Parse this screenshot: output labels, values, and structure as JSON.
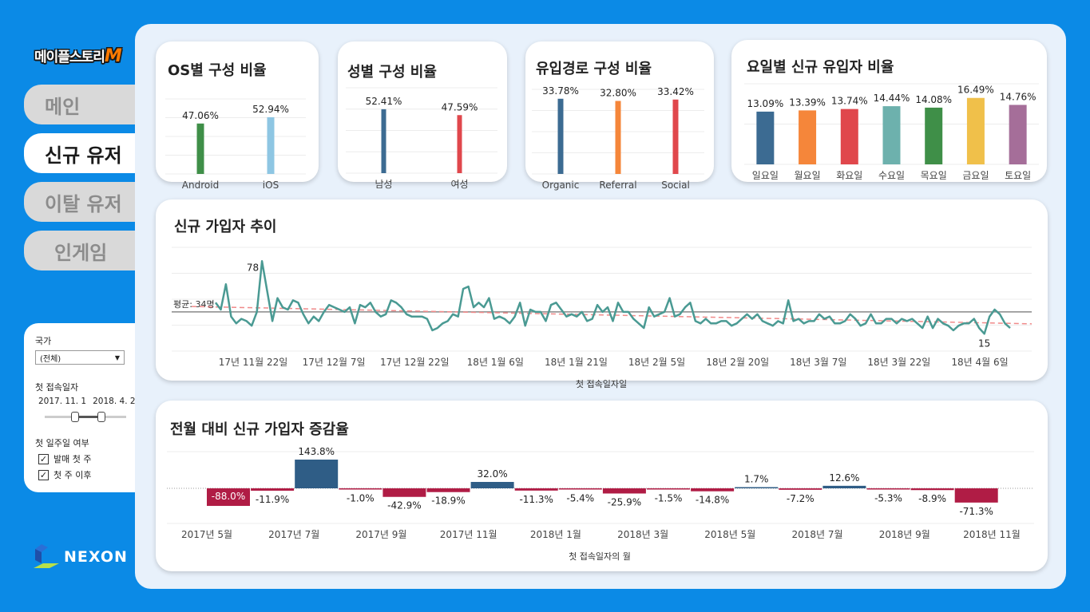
{
  "sidebar": {
    "logo": "메이플스토리",
    "logo_m": "M",
    "nav": [
      "메인",
      "신규 유저",
      "이탈 유저",
      "인게임"
    ],
    "active_index": 1,
    "filters": {
      "country_label": "국가",
      "country_value": "(전체)",
      "first_date_label": "첫 접속일자",
      "date_start": "2017. 11. 1",
      "date_end": "2018. 4. 2.",
      "first_week_label": "첫 일주일 여부",
      "checkbox_1": "발매 첫 주",
      "checkbox_2": "첫 주 이후"
    },
    "brand": "NEXON"
  },
  "os_card": {
    "title": "OS별 구성 비율",
    "chart_data": {
      "type": "bar",
      "categories": [
        "Android",
        "iOS"
      ],
      "values": [
        47.06,
        52.94
      ],
      "labels": [
        "47.06%",
        "52.94%"
      ],
      "colors": [
        "#3f8f48",
        "#8ec6e3"
      ]
    }
  },
  "gender_card": {
    "title": "성별 구성 비율",
    "chart_data": {
      "type": "bar",
      "categories": [
        "남성",
        "여성"
      ],
      "values": [
        52.41,
        47.59
      ],
      "labels": [
        "52.41%",
        "47.59%"
      ],
      "colors": [
        "#3c6b92",
        "#e0474c"
      ]
    }
  },
  "channel_card": {
    "title": "유입경로 구성 비율",
    "chart_data": {
      "type": "bar",
      "categories": [
        "Organic",
        "Referral",
        "Social"
      ],
      "values": [
        33.78,
        32.8,
        33.42
      ],
      "labels": [
        "33.78%",
        "32.80%",
        "33.42%"
      ],
      "colors": [
        "#3c6b92",
        "#f5863a",
        "#e0474c"
      ]
    }
  },
  "weekday_card": {
    "title": "요일별 신규 유입자 비율",
    "chart_data": {
      "type": "bar",
      "categories": [
        "일요일",
        "월요일",
        "화요일",
        "수요일",
        "목요일",
        "금요일",
        "토요일"
      ],
      "values": [
        13.09,
        13.39,
        13.74,
        14.44,
        14.08,
        16.49,
        14.76
      ],
      "labels": [
        "13.09%",
        "13.39%",
        "13.74%",
        "14.44%",
        "14.08%",
        "16.49%",
        "14.76%"
      ],
      "colors": [
        "#3c6b92",
        "#f5863a",
        "#e0474c",
        "#6db1ad",
        "#3f8f48",
        "#f0c04a",
        "#a56e99"
      ]
    }
  },
  "trend_card": {
    "title": "신규 가입자 추이",
    "avg_label": "평균: 34명",
    "max_label": "78",
    "min_label": "15",
    "xlabel": "첫 접속일자일",
    "chart_data": {
      "type": "line",
      "x_ticks": [
        "17년 11월 22일",
        "17년 12월 7일",
        "17년 12월 22일",
        "18년 1월 6일",
        "18년 1월 21일",
        "18년 2월 5일",
        "18년 2월 20일",
        "18년 3월 7일",
        "18년 3월 22일",
        "18년 4월 6일"
      ],
      "ylim": [
        0,
        90
      ],
      "average": 34,
      "values": [
        42,
        36,
        58,
        30,
        24,
        28,
        26,
        22,
        34,
        78,
        52,
        26,
        46,
        38,
        36,
        44,
        42,
        32,
        24,
        30,
        26,
        34,
        40,
        38,
        36,
        34,
        38,
        24,
        40,
        38,
        42,
        34,
        30,
        32,
        44,
        42,
        38,
        32,
        30,
        30,
        30,
        28,
        18,
        20,
        24,
        26,
        32,
        30,
        54,
        56,
        38,
        42,
        38,
        46,
        28,
        30,
        28,
        24,
        30,
        42,
        22,
        36,
        34,
        34,
        26,
        40,
        42,
        36,
        30,
        32,
        30,
        34,
        26,
        28,
        40,
        34,
        38,
        26,
        42,
        34,
        34,
        28,
        24,
        20,
        38,
        30,
        32,
        34,
        46,
        30,
        32,
        38,
        42,
        26,
        24,
        28,
        24,
        24,
        26,
        26,
        22,
        24,
        28,
        32,
        28,
        32,
        26,
        24,
        22,
        26,
        24,
        44,
        26,
        28,
        24,
        26,
        26,
        32,
        28,
        30,
        24,
        24,
        26,
        32,
        28,
        22,
        24,
        32,
        24,
        24,
        28,
        28,
        24,
        28,
        26,
        28,
        24,
        20,
        30,
        20,
        28,
        24,
        22,
        18,
        22,
        24,
        24,
        28,
        20,
        15,
        30,
        36,
        32,
        24,
        20
      ]
    }
  },
  "mom_card": {
    "title": "전월 대비 신규 가입자 증감율",
    "xlabel": "첫 접속일자의 월",
    "chart_data": {
      "type": "bar",
      "x_ticks": [
        "2017년 5월",
        "2017년 7월",
        "2017년 9월",
        "2017년 11월",
        "2018년 1월",
        "2018년 3월",
        "2018년 5월",
        "2018년 7월",
        "2018년 9월",
        "2018년 11월"
      ],
      "values": [
        -88.0,
        -11.9,
        143.8,
        -1.0,
        -42.9,
        -18.9,
        32.0,
        -11.3,
        -5.4,
        -25.9,
        -1.5,
        -14.8,
        1.7,
        -7.2,
        12.6,
        -5.3,
        -8.9,
        -71.3
      ],
      "labels": [
        "-88.0%",
        "-11.9%",
        "143.8%",
        "-1.0%",
        "-42.9%",
        "-18.9%",
        "32.0%",
        "-11.3%",
        "-5.4%",
        "-25.9%",
        "-1.5%",
        "-14.8%",
        "1.7%",
        "-7.2%",
        "12.6%",
        "-5.3%",
        "-8.9%",
        "-71.3%"
      ],
      "positive_color": "#2f5d86",
      "negative_color": "#b01c45"
    }
  }
}
